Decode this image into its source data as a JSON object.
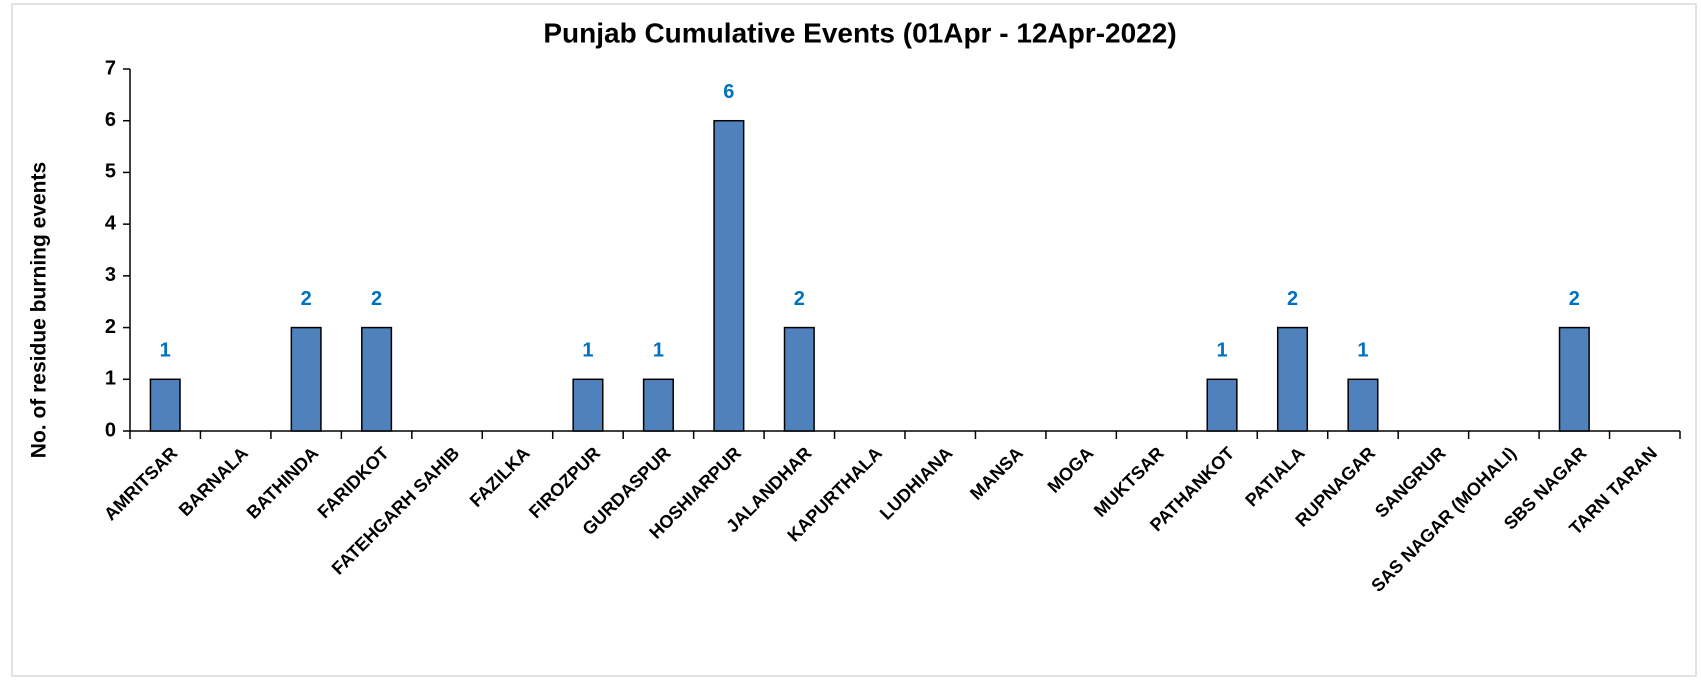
{
  "chart_data": {
    "type": "bar",
    "title": "Punjab Cumulative Events (01Apr - 12Apr-2022)",
    "y_label": "No. of residue burning events",
    "categories": [
      "AMRITSAR",
      "BARNALA",
      "BATHINDA",
      "FARIDKOT",
      "FATEHGARH SAHIB",
      "FAZILKA",
      "FIROZPUR",
      "GURDASPUR",
      "HOSHIARPUR",
      "JALANDHAR",
      "KAPURTHALA",
      "LUDHIANA",
      "MANSA",
      "MOGA",
      "MUKTSAR",
      "PATHANKOT",
      "PATIALA",
      "RUPNAGAR",
      "SANGRUR",
      "SAS NAGAR (MOHALI)",
      "SBS NAGAR",
      "TARN TARAN"
    ],
    "values": [
      1,
      0,
      2,
      2,
      0,
      0,
      1,
      1,
      6,
      2,
      0,
      0,
      0,
      0,
      0,
      1,
      2,
      1,
      0,
      0,
      2,
      0
    ],
    "value_labels": [
      "1",
      null,
      "2",
      "2",
      null,
      null,
      "1",
      "1",
      "6",
      "2",
      null,
      null,
      null,
      null,
      null,
      "1",
      "2",
      "1",
      null,
      null,
      "2",
      null
    ],
    "color": "#4f81bd",
    "ylim": [
      0,
      7
    ],
    "yticks": [
      0,
      1,
      2,
      3,
      4,
      5,
      6,
      7
    ],
    "grid": false
  }
}
